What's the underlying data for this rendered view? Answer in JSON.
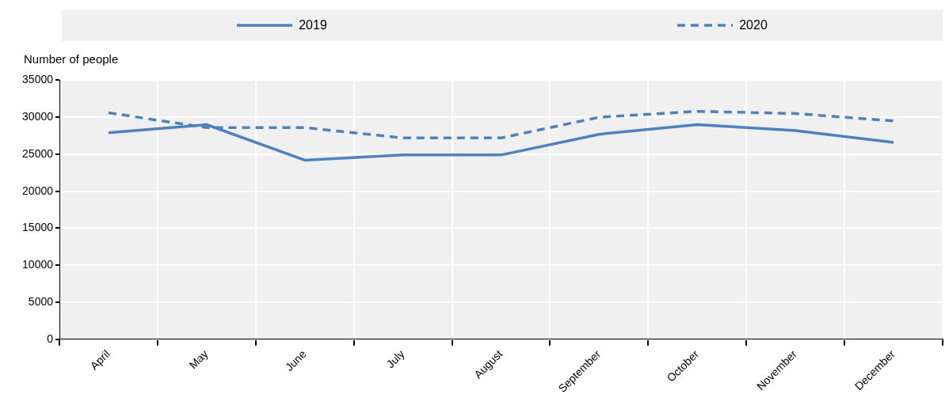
{
  "chart_data": {
    "type": "line",
    "ylabel": "Number of people",
    "categories": [
      "April",
      "May",
      "June",
      "July",
      "August",
      "September",
      "October",
      "November",
      "December"
    ],
    "series": [
      {
        "name": "2019",
        "color": "#4f81bd",
        "line_style": "solid",
        "values": [
          27900,
          29000,
          24200,
          24900,
          24900,
          27700,
          29000,
          28200,
          26600
        ]
      },
      {
        "name": "2020",
        "color": "#4f81bd",
        "line_style": "dashed",
        "values": [
          30600,
          28600,
          28600,
          27200,
          27200,
          30000,
          30800,
          30500,
          29500
        ]
      }
    ],
    "ylim": [
      0,
      35000
    ],
    "yticks": [
      0,
      5000,
      10000,
      15000,
      20000,
      25000,
      30000,
      35000
    ],
    "grid": true,
    "legend": "top",
    "marker": "none"
  }
}
